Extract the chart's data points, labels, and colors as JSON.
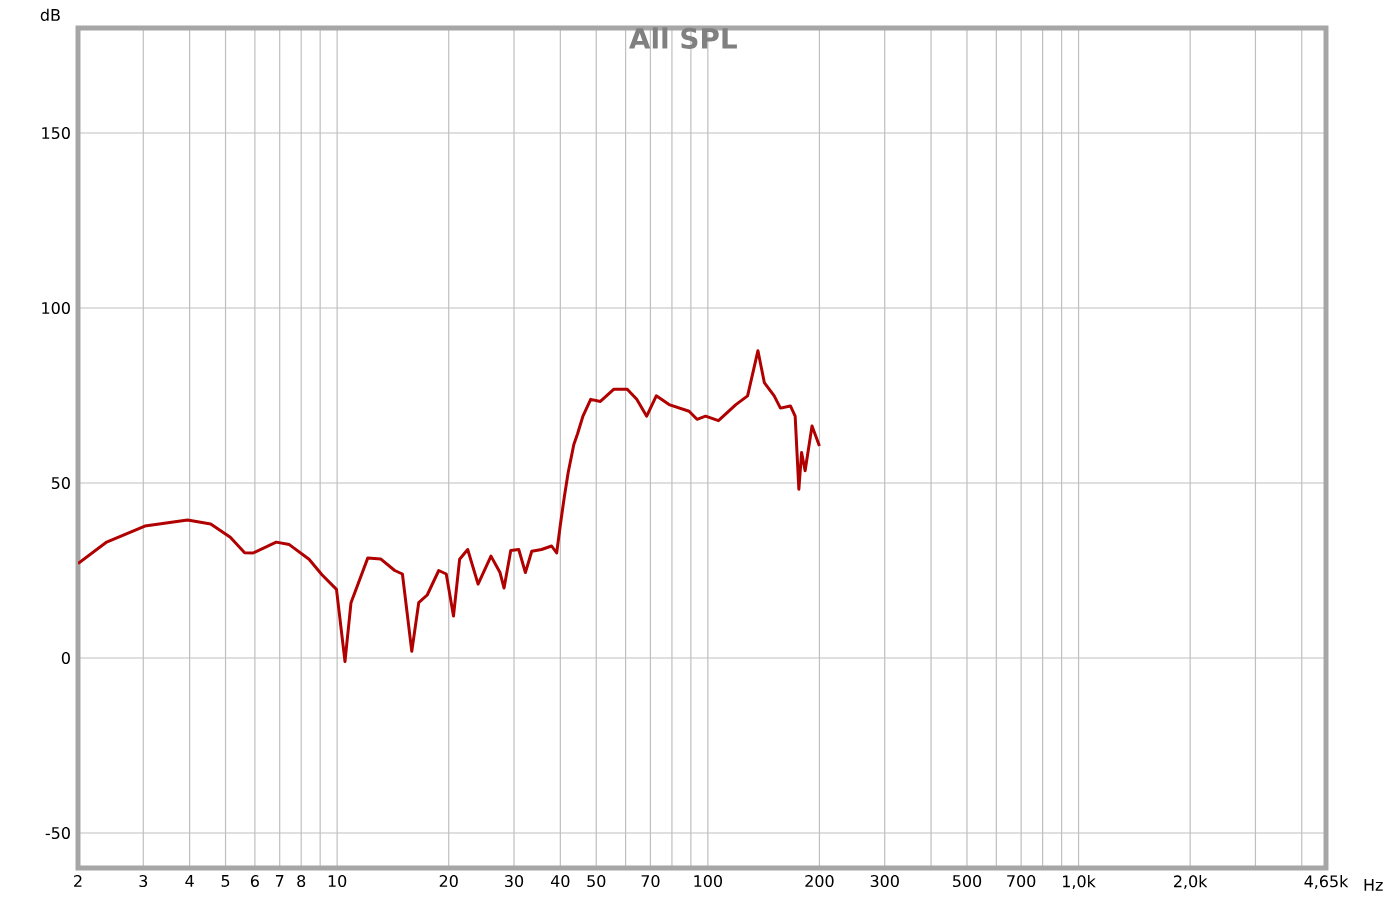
{
  "chart_data": {
    "type": "line",
    "title": "All SPL",
    "xlabel": "Hz",
    "ylabel": "dB",
    "log": "x",
    "grid": true,
    "xlim": [
      2,
      4650
    ],
    "ylim": [
      -60,
      180
    ],
    "xticks": [
      2,
      3,
      4,
      5,
      6,
      7,
      8,
      {
        "value": 9,
        "label": null
      },
      10,
      20,
      30,
      40,
      50,
      {
        "value": 60,
        "label": null
      },
      70,
      {
        "value": 80,
        "label": null
      },
      {
        "value": 90,
        "label": null
      },
      100,
      200,
      300,
      {
        "value": 400,
        "label": null
      },
      500,
      {
        "value": 600,
        "label": null
      },
      700,
      {
        "value": 800,
        "label": null
      },
      {
        "value": 900,
        "label": null
      },
      {
        "value": 1000,
        "label": "1,0k"
      },
      {
        "value": 2000,
        "label": "2,0k"
      },
      {
        "value": 3000,
        "label": null
      },
      {
        "value": 4000,
        "label": null
      },
      {
        "value": 4650,
        "label": "4,65k"
      }
    ],
    "yticks": [
      -50,
      0,
      50,
      100,
      150
    ],
    "series": [
      {
        "color": "#b00000",
        "x": [
          2,
          2.38,
          3.03,
          3.95,
          4.56,
          5.15,
          5.63,
          5.93,
          6.85,
          7.43,
          8.4,
          9.1,
          9.96,
          10.5,
          10.9,
          12.1,
          13.1,
          14.3,
          15,
          15.9,
          16.6,
          17.5,
          18.8,
          19.7,
          20.6,
          21.4,
          22.5,
          24,
          26,
          27.5,
          28.2,
          29.4,
          30.9,
          32.2,
          33.5,
          35.6,
          37.9,
          39.1,
          40,
          41,
          42,
          43.5,
          44.5,
          46,
          48.3,
          51.3,
          55.8,
          60.6,
          64.3,
          68.4,
          72.6,
          78.6,
          89,
          93.5,
          98.6,
          106.8,
          119,
          128,
          136.5,
          142,
          151,
          157,
          167,
          172,
          176,
          179,
          183,
          191,
          200
        ],
        "values": [
          27,
          33,
          37.7,
          39.4,
          38.3,
          34.5,
          30.1,
          30,
          33.1,
          32.4,
          28.2,
          23.8,
          19.6,
          -1,
          15.8,
          28.6,
          28.3,
          25,
          24,
          1.9,
          15.8,
          18,
          25,
          24,
          12,
          28.2,
          31,
          21.1,
          29.1,
          24.4,
          20,
          30.7,
          31,
          24.4,
          30.5,
          31,
          32,
          30,
          38,
          46,
          53,
          61,
          64,
          69,
          73.9,
          73.3,
          76.8,
          76.8,
          73.9,
          69.1,
          74.9,
          72.4,
          70.5,
          68.2,
          69.1,
          67.8,
          72.4,
          74.9,
          87.8,
          78.7,
          74.9,
          71.4,
          72,
          69.1,
          48.2,
          58.7,
          53.5,
          66.3,
          60.6
        ]
      }
    ]
  }
}
